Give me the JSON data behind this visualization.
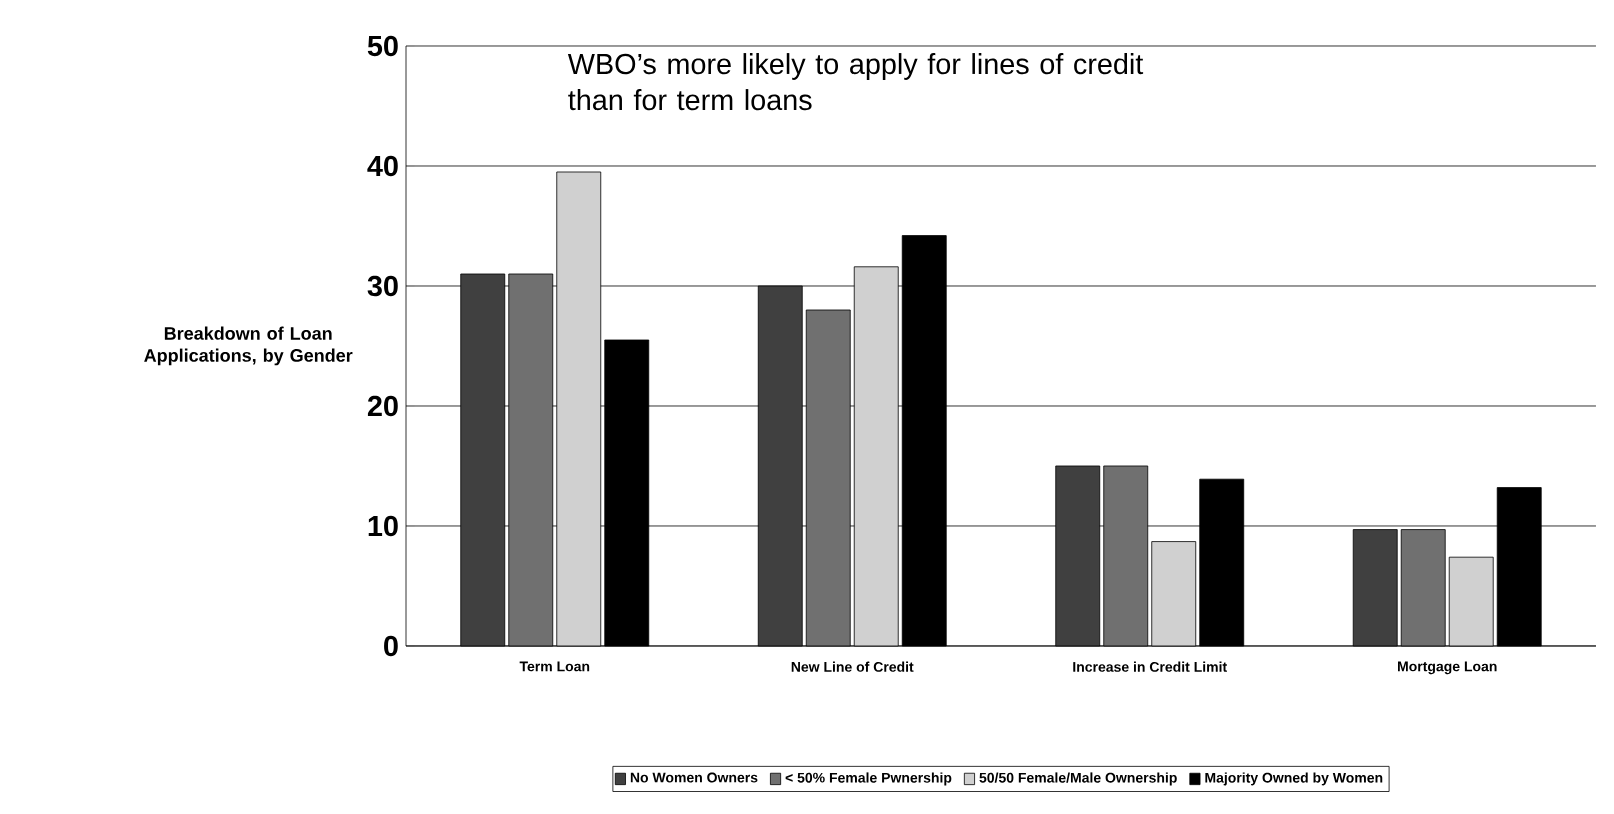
{
  "chart_data": {
    "type": "bar",
    "title": "WBO’s more likely to apply for lines of credit than for term loans",
    "ylabel": "Breakdown of Loan Applications, by Gender",
    "categories": [
      "Term Loan",
      "New Line of Credit",
      "Increase in Credit Limit",
      "Mortgage Loan"
    ],
    "series": [
      {
        "name": "No Women Owners",
        "color": "#404040",
        "values": [
          31,
          30,
          15,
          9.7
        ]
      },
      {
        "name": "< 50% Female Pwnership",
        "color": "#707070",
        "values": [
          31,
          28,
          15,
          9.7
        ]
      },
      {
        "name": "50/50 Female/Male Ownership",
        "color": "#d0d0d0",
        "values": [
          39.5,
          31.6,
          8.7,
          7.4
        ]
      },
      {
        "name": "Majority Owned by Women",
        "color": "#000000",
        "values": [
          25.5,
          34.2,
          13.9,
          13.2
        ]
      }
    ],
    "ylim": [
      0,
      50
    ],
    "yticks": [
      0,
      10,
      20,
      30,
      40,
      50
    ],
    "grid": "y",
    "legend": "bottom"
  }
}
